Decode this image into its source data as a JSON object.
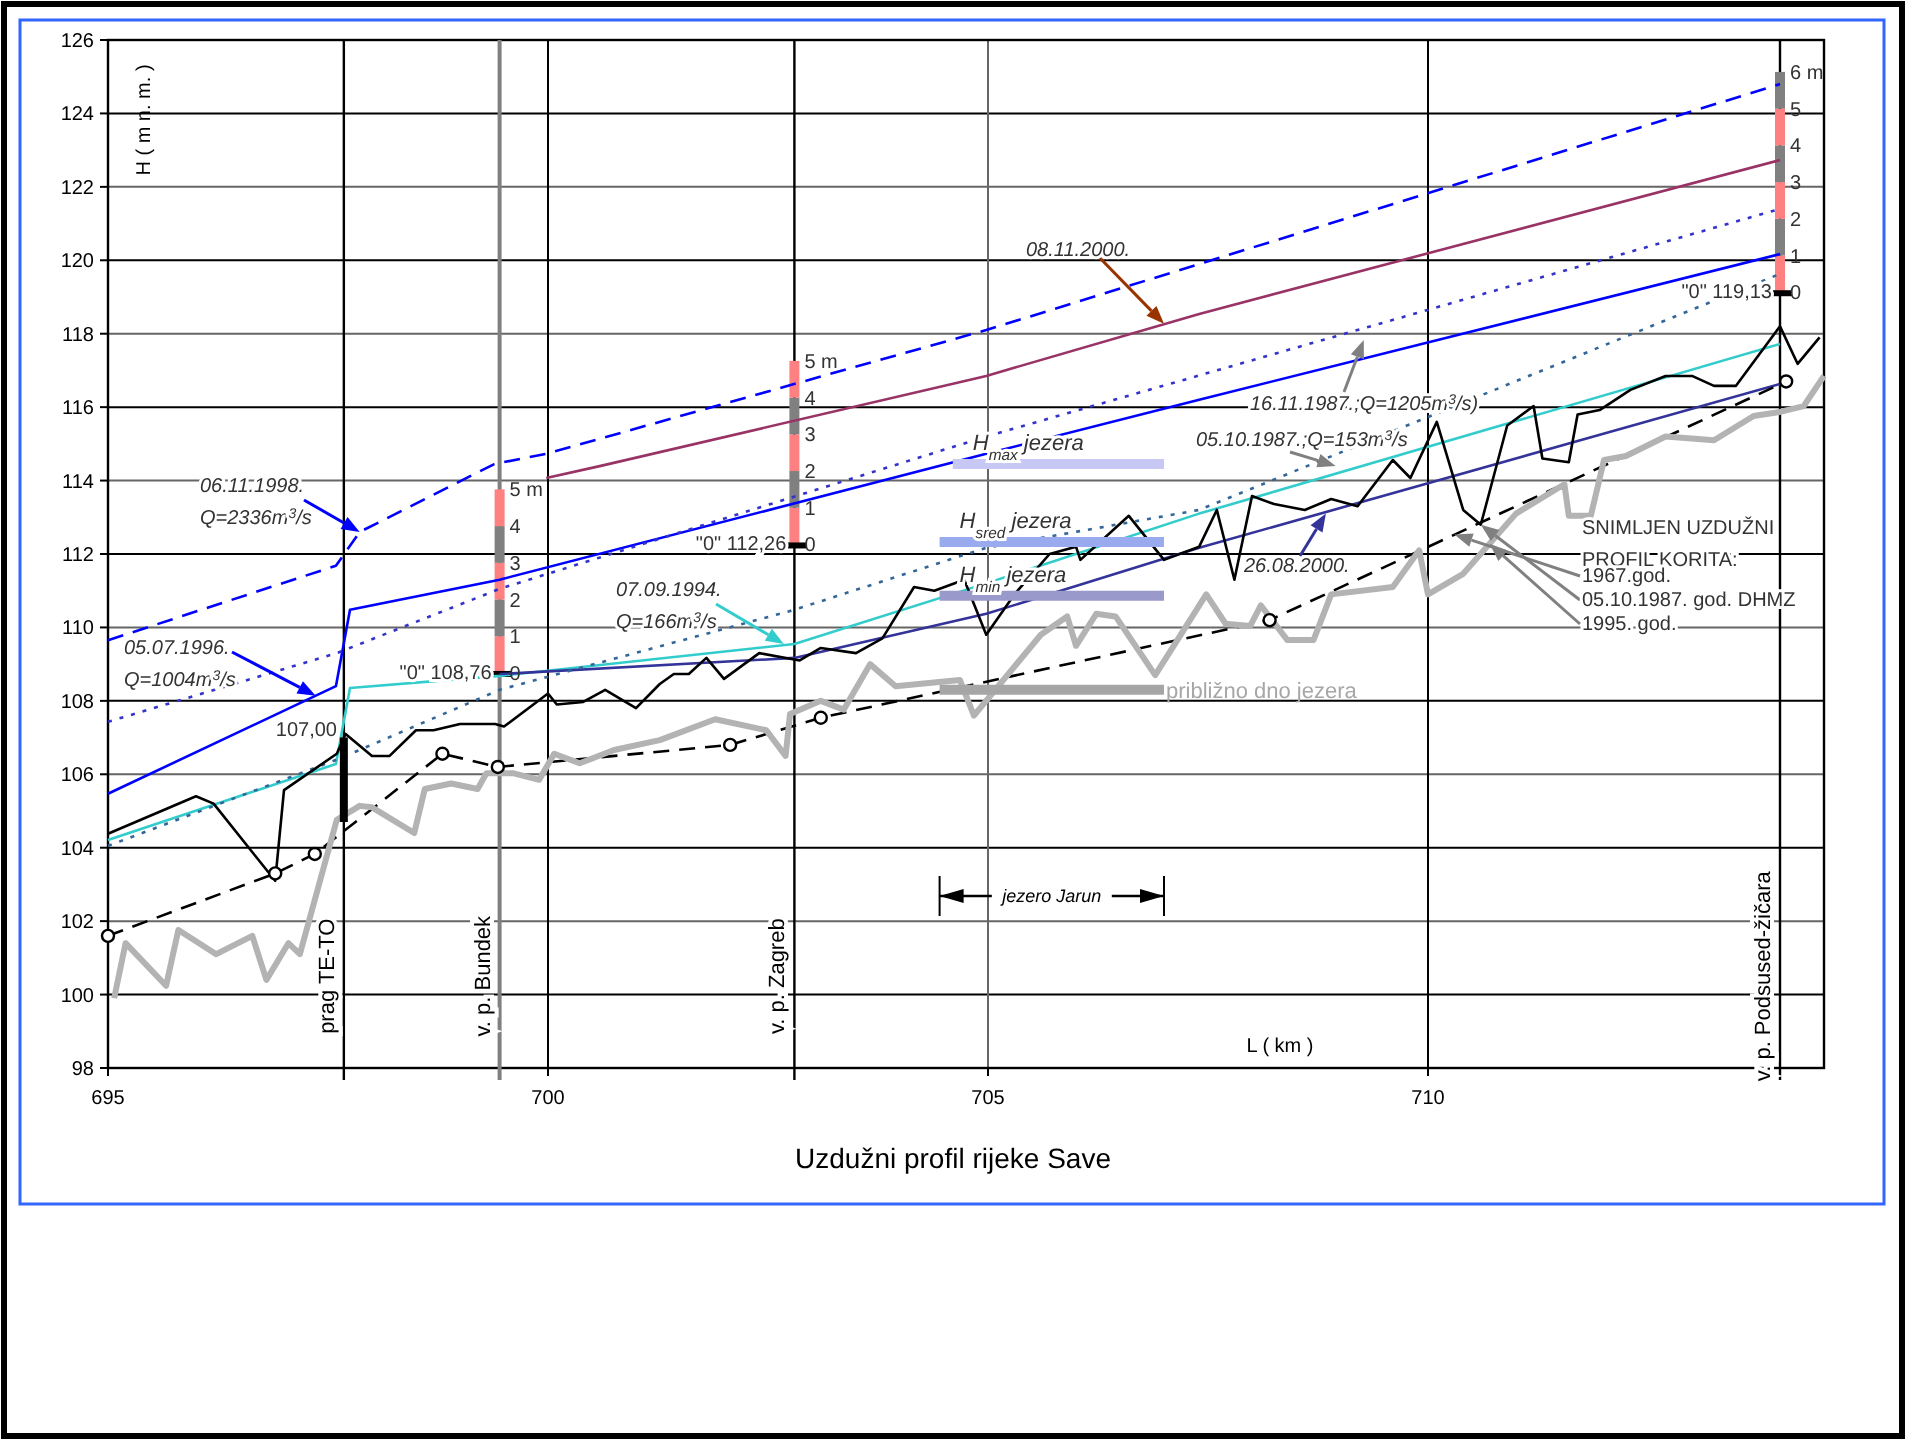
{
  "chart_data": {
    "type": "line",
    "title": "Uzdužni profil rijeke Save",
    "xlabel": "L ( km )",
    "ylabel": "H ( m n. m. )",
    "xlim": [
      695,
      714.5
    ],
    "xticks": [
      695,
      700,
      705,
      710
    ],
    "ylim": [
      98,
      126
    ],
    "yticks": [
      98,
      100,
      102,
      104,
      106,
      108,
      110,
      112,
      114,
      116,
      118,
      120,
      122,
      124,
      126
    ],
    "grid": true,
    "marker": "none",
    "series": [
      {
        "color": "#0000ff",
        "line_style": "dashed",
        "x": [
          695,
          697.59,
          697.86,
          699.39,
          699.98,
          704.98,
          714.0
        ],
        "values": [
          109.65,
          111.68,
          112.6,
          114.45,
          114.73,
          118.1,
          124.8
        ]
      },
      {
        "color": "#993366",
        "line_style": "solid",
        "x": [
          699.98,
          700.6,
          704.98,
          707.4,
          714.0
        ],
        "values": [
          114.07,
          114.4,
          116.85,
          118.54,
          122.73
        ]
      },
      {
        "color": "#0000ff",
        "line_style": "solid",
        "x": [
          695,
          697.59,
          697.75,
          699.45,
          704.98,
          707.4,
          714.0
        ],
        "values": [
          105.47,
          108.4,
          110.48,
          111.3,
          114.73,
          116.2,
          120.17
        ]
      },
      {
        "color": "#3333cc",
        "line_style": "dotted",
        "x": [
          695,
          697.6,
          699.45,
          704.98,
          714.0
        ],
        "values": [
          107.43,
          109.3,
          111.05,
          115.2,
          121.4
        ]
      },
      {
        "color": "#33cccc",
        "line_style": "solid",
        "x": [
          695,
          697.59,
          697.75,
          699.45,
          702.8,
          704.98,
          707.4,
          714.0
        ],
        "values": [
          104.21,
          106.28,
          108.35,
          108.68,
          109.55,
          111.2,
          113.1,
          117.72
        ]
      },
      {
        "color": "#333399",
        "line_style": "solid",
        "x": [
          699.45,
          702.8,
          704.98,
          707.4,
          714.0
        ],
        "values": [
          108.73,
          109.17,
          110.37,
          112.17,
          116.63
        ]
      },
      {
        "color": "#336699",
        "line_style": "dotted",
        "x": [
          695,
          697.6,
          697.75,
          699.45,
          702.8,
          704.98,
          707.4,
          714.0
        ],
        "values": [
          104.05,
          106.4,
          106.55,
          108.3,
          110.48,
          112.17,
          113.2,
          119.63
        ]
      },
      {
        "color": "#000000",
        "line_style": "solid",
        "x": [
          695,
          696.0,
          696.2,
          696.9,
          697.0,
          697.6,
          697.7,
          698.0,
          698.2,
          698.5,
          698.7,
          699.0,
          699.4,
          699.5,
          700.0,
          700.1,
          700.4,
          700.65,
          701.0,
          701.27,
          701.43,
          701.6,
          701.8,
          702.0,
          702.4,
          702.86,
          703.1,
          703.5,
          703.8,
          704.16,
          704.39,
          704.73,
          704.98,
          705.3,
          705.7,
          706.0,
          706.05,
          706.6,
          707.0,
          707.4,
          707.6,
          707.8,
          708.0,
          708.25,
          708.6,
          708.9,
          709.2,
          709.6,
          709.8,
          710.1,
          710.4,
          710.6,
          710.9,
          711.2,
          711.3,
          711.6,
          711.7,
          711.95,
          712.3,
          712.7,
          713.0,
          713.25,
          713.5,
          714.0,
          714.2,
          714.45
        ],
        "values": [
          104.38,
          105.4,
          105.2,
          103.1,
          105.57,
          106.56,
          107.1,
          106.5,
          106.5,
          107.2,
          107.2,
          107.37,
          107.37,
          107.3,
          108.2,
          107.9,
          107.97,
          108.3,
          107.8,
          108.46,
          108.73,
          108.73,
          109.17,
          108.6,
          109.3,
          109.1,
          109.44,
          109.3,
          109.7,
          111.1,
          111.0,
          111.3,
          109.8,
          110.9,
          112.0,
          112.2,
          111.84,
          113.04,
          111.84,
          112.2,
          113.2,
          111.3,
          113.58,
          113.36,
          113.2,
          113.5,
          113.3,
          114.56,
          114.07,
          115.6,
          113.2,
          112.8,
          115.5,
          116.03,
          114.6,
          114.5,
          115.8,
          115.92,
          116.47,
          116.85,
          116.85,
          116.58,
          116.58,
          118.2,
          117.18,
          117.9
        ]
      },
      {
        "color": "#000000",
        "line_style": "dashed",
        "marker": "circle",
        "x": [
          695,
          696.9,
          697.35,
          698.8,
          699.43,
          702.07,
          703.1,
          708.2,
          714.07
        ],
        "values": [
          101.6,
          103.3,
          103.83,
          106.56,
          106.2,
          106.8,
          107.54,
          110.2,
          116.7
        ]
      },
      {
        "color": "#b3b3b3",
        "line_style": "solid",
        "x": [
          695.07,
          695.2,
          695.66,
          695.8,
          696.23,
          696.64,
          696.8,
          697.05,
          697.18,
          697.6,
          697.86,
          698.0,
          698.48,
          698.6,
          698.9,
          699.2,
          699.3,
          699.6,
          699.9,
          700.07,
          700.36,
          700.75,
          701.27,
          701.9,
          702.48,
          702.7,
          702.75,
          703.1,
          703.36,
          703.66,
          703.95,
          704.68,
          704.84,
          705.6,
          705.9,
          706.0,
          706.23,
          706.45,
          706.9,
          707.48,
          707.7,
          707.98,
          708.1,
          708.4,
          708.7,
          708.9,
          709.6,
          709.9,
          710.0,
          710.4,
          711.0,
          711.55,
          711.6,
          711.85,
          712.0,
          712.25,
          712.7,
          713.25,
          713.7,
          714.0,
          714.27,
          714.5
        ],
        "values": [
          99.9,
          101.4,
          100.24,
          101.76,
          101.1,
          101.6,
          100.4,
          101.4,
          101.1,
          104.76,
          105.14,
          105.1,
          104.4,
          105.6,
          105.75,
          105.6,
          106.03,
          106.03,
          105.85,
          106.56,
          106.3,
          106.66,
          106.93,
          107.5,
          107.2,
          106.5,
          107.64,
          108.0,
          107.76,
          109.0,
          108.4,
          108.57,
          107.6,
          109.8,
          110.3,
          109.5,
          110.37,
          110.3,
          108.7,
          110.9,
          110.1,
          110.04,
          110.6,
          109.66,
          109.66,
          110.9,
          111.1,
          112.1,
          110.9,
          111.46,
          113.1,
          113.9,
          113.04,
          113.04,
          114.56,
          114.67,
          115.2,
          115.1,
          115.76,
          115.87,
          116.03,
          116.85
        ]
      },
      {
        "color": "#000000",
        "line_style": "solid",
        "x": [
          697.68,
          697.68
        ],
        "values": [
          104.7,
          107.0
        ]
      },
      {
        "name": "H$_{max}$ jezera",
        "color": "#c8c8f4",
        "line_style": "solid",
        "x": [
          704.6,
          707.0
        ],
        "values": [
          114.45,
          114.45
        ]
      },
      {
        "name": "H$_{sred}$ jezera",
        "color": "#99aaee",
        "line_style": "solid",
        "x": [
          704.45,
          707.0
        ],
        "values": [
          112.33,
          112.33
        ]
      },
      {
        "name": "H$_{min}$ jezera",
        "color": "#9999cc",
        "line_style": "solid",
        "x": [
          704.45,
          707.0
        ],
        "values": [
          110.86,
          110.86
        ]
      },
      {
        "name": "približno dno jezera",
        "color": "#a6a6a6",
        "line_style": "solid",
        "x": [
          704.45,
          707.0
        ],
        "values": [
          108.3,
          108.3
        ]
      }
    ],
    "ref_lines": [
      {
        "axis": "x",
        "value": 697.68,
        "label": "prag TE-TO",
        "color": "#000000"
      },
      {
        "axis": "x",
        "value": 699.45,
        "label": "v. p. Bundek",
        "color": "#808080"
      },
      {
        "axis": "x",
        "value": 702.8,
        "label": "v. p. Zagreb",
        "color": "#000000"
      },
      {
        "axis": "x",
        "value": 714.0,
        "label": "v. p. Podsused-žičara",
        "color": "#000000"
      }
    ],
    "annotations": [
      {
        "text": "06.11.1998.\nQ=2336m$^{3}$/s",
        "x": 697.86,
        "y": 112.6
      },
      {
        "text": "05.07.1996.\nQ=1004m$^{3}$/s",
        "x": 697.36,
        "y": 108.14
      },
      {
        "text": "07.09.1994.\nQ=166m$^{3}$/s",
        "x": 702.68,
        "y": 109.55
      },
      {
        "text": "08.11.2000.",
        "x": 707.0,
        "y": 118.27
      },
      {
        "text": "16.11.1987.;Q=1205m$^{3}$/s)",
        "x": 709.27,
        "y": 117.83
      },
      {
        "text": "05.10.1987.;Q=153m$^{3}$/s",
        "x": 708.95,
        "y": 114.4
      },
      {
        "text": "26.08.2000.",
        "x": 708.84,
        "y": 113.1
      },
      "SNIMLJEN UZDUŽNI\nPROFIL KORITA:",
      {
        "text": "1967.god.",
        "x": 710.3,
        "y": 112.53
      },
      {
        "text": "05.10.1987. god. DHMZ",
        "x": 710.6,
        "y": 112.8
      },
      {
        "text": "1995. god.",
        "x": 710.7,
        "y": 112.28
      },
      {
        "text": "107,00",
        "x": 697.68,
        "y": 107.0
      },
      {
        "text": "\"0\" 108,76",
        "x": 699.45,
        "y": 108.76
      },
      {
        "text": "\"0\" 112,26",
        "x": 702.8,
        "y": 112.26
      },
      {
        "text": "\"0\" 119,13",
        "x": 714.0,
        "y": 119.13
      },
      "jezero Jarun",
      {
        "text": "0",
        "x": 699.45,
        "y": 108.76
      },
      {
        "text": "1",
        "x": 699.45,
        "y": 109.76
      },
      {
        "text": "2",
        "x": 699.45,
        "y": 110.76
      },
      {
        "text": "3",
        "x": 699.45,
        "y": 111.76
      },
      {
        "text": "4",
        "x": 699.45,
        "y": 112.76
      },
      {
        "text": "5 m",
        "x": 699.45,
        "y": 113.76
      },
      {
        "text": "0",
        "x": 702.8,
        "y": 112.26
      },
      {
        "text": "1",
        "x": 702.8,
        "y": 113.26
      },
      {
        "text": "2",
        "x": 702.8,
        "y": 114.26
      },
      {
        "text": "3",
        "x": 702.8,
        "y": 115.26
      },
      {
        "text": "4",
        "x": 702.8,
        "y": 116.26
      },
      {
        "text": "5 m",
        "x": 702.8,
        "y": 117.26
      },
      {
        "text": "0",
        "x": 714.0,
        "y": 119.13
      },
      {
        "text": "1",
        "x": 714.0,
        "y": 120.13
      },
      {
        "text": "2",
        "x": 714.0,
        "y": 121.13
      },
      {
        "text": "3",
        "x": 714.0,
        "y": 122.13
      },
      {
        "text": "4",
        "x": 714.0,
        "y": 123.13
      },
      {
        "text": "5",
        "x": 714.0,
        "y": 124.13
      },
      {
        "text": "6 m",
        "x": 714.0,
        "y": 125.13
      }
    ]
  }
}
